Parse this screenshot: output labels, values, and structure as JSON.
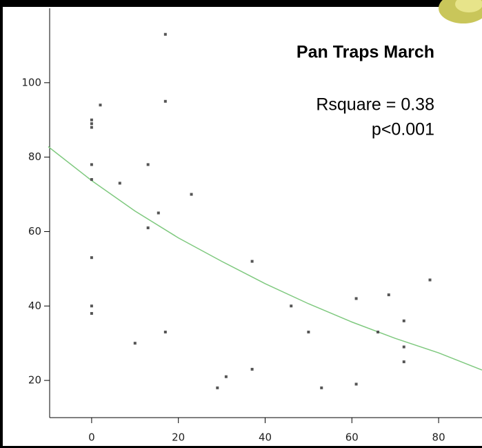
{
  "chart_data": {
    "type": "scatter",
    "title": "Pan Traps March",
    "annotations": [
      "Rsquare = 0.38",
      "p<0.001"
    ],
    "x": [
      17,
      2,
      17,
      0,
      0,
      0,
      0,
      13,
      0,
      6.5,
      23,
      15.4,
      13,
      0,
      37,
      0,
      0,
      10,
      17,
      46,
      50,
      61,
      68.5,
      66,
      72,
      72,
      72,
      78,
      37,
      31,
      29,
      53,
      61
    ],
    "values": [
      113,
      94,
      95,
      90,
      89,
      88,
      78,
      78,
      74,
      73,
      70,
      65,
      61,
      53,
      52,
      40,
      38,
      30,
      33,
      40,
      33,
      42,
      43,
      33,
      36,
      29,
      25,
      47,
      23,
      21,
      18,
      18,
      19
    ],
    "color": "#555555",
    "fit": {
      "color": "#7fc97f",
      "x": [
        -10,
        0,
        10,
        20,
        30,
        40,
        50,
        60,
        70,
        80,
        90
      ],
      "values": [
        82.8,
        73.7,
        65.5,
        58.3,
        52,
        46,
        40.6,
        35.7,
        31.3,
        27.4,
        22.8
      ]
    },
    "xlim": [
      -10,
      90
    ],
    "ylim": [
      10,
      120
    ],
    "xticks": [
      0,
      20,
      40,
      60,
      80
    ],
    "yticks": [
      20,
      40,
      60,
      80,
      100
    ],
    "grid": false
  }
}
